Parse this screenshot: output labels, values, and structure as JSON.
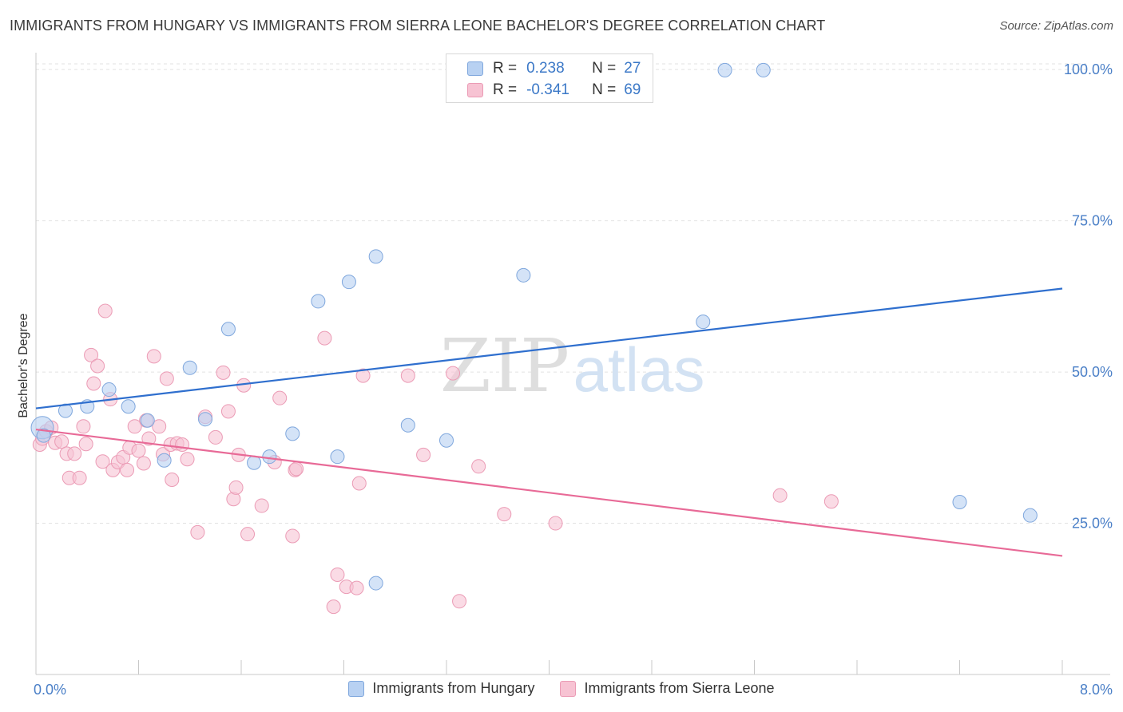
{
  "title": "IMMIGRANTS FROM HUNGARY VS IMMIGRANTS FROM SIERRA LEONE BACHELOR'S DEGREE CORRELATION CHART",
  "source": "Source: ZipAtlas.com",
  "watermark": {
    "zip": "ZIP",
    "atlas": "atlas"
  },
  "legend": {
    "rows": [
      {
        "r_label": "R =",
        "r_value": "0.238",
        "n_label": "N =",
        "n_value": "27"
      },
      {
        "r_label": "R =",
        "r_value": "-0.341",
        "n_label": "N =",
        "n_value": "69"
      }
    ]
  },
  "colors": {
    "hungary_fill": "#b8d1f2",
    "hungary_stroke": "#7fa7dd",
    "hungary_line": "#2f6fce",
    "sierra_fill": "#f7c3d3",
    "sierra_stroke": "#eb9bb5",
    "sierra_line": "#e86a97",
    "tick_text": "#4a7fc7",
    "grid": "#e2e2e2"
  },
  "chart_data": {
    "type": "scatter",
    "title": "IMMIGRANTS FROM HUNGARY VS IMMIGRANTS FROM SIERRA LEONE BACHELOR'S DEGREE CORRELATION CHART",
    "xlabel": "",
    "ylabel": "Bachelor's Degree",
    "xlim": [
      0,
      8
    ],
    "ylim": [
      0,
      102
    ],
    "x_tick_labels": [
      "0.0%",
      "8.0%"
    ],
    "y_ticks": [
      25,
      50,
      75,
      100
    ],
    "y_tick_labels": [
      "25.0%",
      "50.0%",
      "75.0%",
      "100.0%"
    ],
    "grid": true,
    "legend_position": "top-center",
    "series": [
      {
        "name": "Immigrants from Hungary",
        "r": 0.238,
        "n": 27,
        "trend": {
          "x": [
            0,
            8
          ],
          "y": [
            44.0,
            63.8
          ]
        },
        "points": [
          [
            0.05,
            40.8
          ],
          [
            0.23,
            43.6
          ],
          [
            0.4,
            44.3
          ],
          [
            0.57,
            47.1
          ],
          [
            0.72,
            44.3
          ],
          [
            0.87,
            42.0
          ],
          [
            1.0,
            35.4
          ],
          [
            1.2,
            50.7
          ],
          [
            1.32,
            42.2
          ],
          [
            1.5,
            57.1
          ],
          [
            1.7,
            35.0
          ],
          [
            1.82,
            36.0
          ],
          [
            2.0,
            39.8
          ],
          [
            2.2,
            61.7
          ],
          [
            2.35,
            36.0
          ],
          [
            2.44,
            64.9
          ],
          [
            2.65,
            69.1
          ],
          [
            2.9,
            41.2
          ],
          [
            3.2,
            38.7
          ],
          [
            3.8,
            66.0
          ],
          [
            5.2,
            58.3
          ],
          [
            5.37,
            99.9
          ],
          [
            5.67,
            99.9
          ],
          [
            7.2,
            28.5
          ],
          [
            7.75,
            26.3
          ],
          [
            2.65,
            15.1
          ],
          [
            0.06,
            39.5
          ]
        ]
      },
      {
        "name": "Immigrants from Sierra Leone",
        "r": -0.341,
        "n": 69,
        "trend": {
          "x": [
            0,
            8
          ],
          "y": [
            40.5,
            19.6
          ]
        },
        "points": [
          [
            0.03,
            38.0
          ],
          [
            0.05,
            39.0
          ],
          [
            0.08,
            40.2
          ],
          [
            0.12,
            40.8
          ],
          [
            0.15,
            38.3
          ],
          [
            0.2,
            38.5
          ],
          [
            0.24,
            36.5
          ],
          [
            0.26,
            32.5
          ],
          [
            0.3,
            36.5
          ],
          [
            0.34,
            32.5
          ],
          [
            0.37,
            41.0
          ],
          [
            0.39,
            38.1
          ],
          [
            0.43,
            52.8
          ],
          [
            0.45,
            48.1
          ],
          [
            0.48,
            51.0
          ],
          [
            0.52,
            35.2
          ],
          [
            0.54,
            60.1
          ],
          [
            0.58,
            45.5
          ],
          [
            0.6,
            33.8
          ],
          [
            0.64,
            35.1
          ],
          [
            0.68,
            35.9
          ],
          [
            0.71,
            33.8
          ],
          [
            0.73,
            37.5
          ],
          [
            0.77,
            41.0
          ],
          [
            0.8,
            37.0
          ],
          [
            0.84,
            34.9
          ],
          [
            0.86,
            42.0
          ],
          [
            0.88,
            39.0
          ],
          [
            0.92,
            52.6
          ],
          [
            0.96,
            41.0
          ],
          [
            0.99,
            36.4
          ],
          [
            1.02,
            48.9
          ],
          [
            1.05,
            38.0
          ],
          [
            1.06,
            32.2
          ],
          [
            1.1,
            38.2
          ],
          [
            1.14,
            38.0
          ],
          [
            1.18,
            35.6
          ],
          [
            1.26,
            23.5
          ],
          [
            1.32,
            42.6
          ],
          [
            1.4,
            39.2
          ],
          [
            1.46,
            49.9
          ],
          [
            1.5,
            43.5
          ],
          [
            1.54,
            29.0
          ],
          [
            1.56,
            30.9
          ],
          [
            1.58,
            36.3
          ],
          [
            1.62,
            47.8
          ],
          [
            1.65,
            23.2
          ],
          [
            1.76,
            27.9
          ],
          [
            1.86,
            35.1
          ],
          [
            1.9,
            45.7
          ],
          [
            2.0,
            22.9
          ],
          [
            2.02,
            33.8
          ],
          [
            2.25,
            55.6
          ],
          [
            2.35,
            16.5
          ],
          [
            2.42,
            14.5
          ],
          [
            2.5,
            14.3
          ],
          [
            2.52,
            31.6
          ],
          [
            2.55,
            49.4
          ],
          [
            2.9,
            49.4
          ],
          [
            3.02,
            36.3
          ],
          [
            3.25,
            49.8
          ],
          [
            3.3,
            12.1
          ],
          [
            3.45,
            34.4
          ],
          [
            3.65,
            26.5
          ],
          [
            4.05,
            25.0
          ],
          [
            5.8,
            29.6
          ],
          [
            6.2,
            28.6
          ],
          [
            2.03,
            34.0
          ],
          [
            2.32,
            11.2
          ]
        ]
      }
    ]
  },
  "bottom_legend": {
    "hungary_label": "Immigrants from Hungary",
    "sierra_label": "Immigrants from Sierra Leone"
  }
}
